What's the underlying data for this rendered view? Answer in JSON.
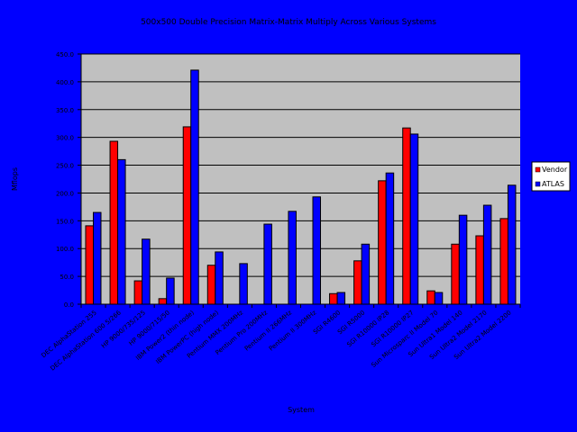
{
  "chart_data": {
    "type": "bar",
    "title": "500x500 Double Precision Matrix-Matrix Multiply Across Various Systems",
    "xlabel": "System",
    "ylabel": "Mflops",
    "ylim": [
      0,
      450
    ],
    "yticks": [
      "0.0",
      "50.0",
      "100.0",
      "150.0",
      "200.0",
      "250.0",
      "300.0",
      "350.0",
      "400.0",
      "450.0"
    ],
    "grid": true,
    "legend_position": "right",
    "categories": [
      "DEC AlphaStation 255",
      "DEC AlphaStation 600 5/266",
      "HP 9000/735/125",
      "HP 9000/715/50",
      "IBM Power2 (thin node)",
      "IBM PowerPC (high node)",
      "Pentium MMX 200MHz",
      "Pentium Pro 200MHz",
      "Pentium II 266MHz",
      "Pentium II 300MHz",
      "SGI R4600",
      "SGI R5000",
      "SGI R10000 IP28",
      "SGI R10000 IP27",
      "Sun Microsparc II Model 70",
      "Sun Ultra1 Model 140",
      "Sun Ultra2 Model 2170",
      "Sun Ultra2 Model 2200"
    ],
    "series": [
      {
        "name": "Vendor",
        "color": "#ff0000",
        "values": [
          141,
          293,
          42,
          10,
          319,
          70,
          null,
          null,
          null,
          null,
          19,
          78,
          222,
          317,
          24,
          108,
          123,
          154
        ]
      },
      {
        "name": "ATLAS",
        "color": "#0000ff",
        "values": [
          165,
          260,
          117,
          47,
          421,
          94,
          73,
          144,
          167,
          193,
          21,
          108,
          236,
          306,
          21,
          160,
          178,
          214
        ]
      }
    ]
  }
}
